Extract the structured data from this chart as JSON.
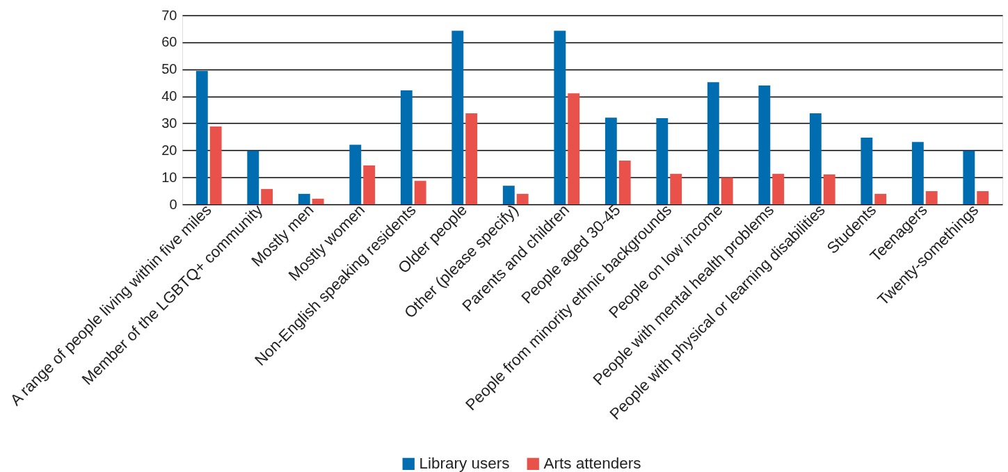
{
  "chart_data": {
    "type": "bar",
    "categories": [
      "A range of people living within five miles",
      "Member of the LGBTQ+ community",
      "Mostly men",
      "Mostly women",
      "Non-English speaking residents",
      "Older people",
      "Other (please specify)",
      "Parents and children",
      "People aged 30-45",
      "People from minority ethnic backgrounds",
      "People on low income",
      "People with mental health problems",
      "People with physical or learning disabilities",
      "Students",
      "Teenagers",
      "Twenty-somethings"
    ],
    "series": [
      {
        "name": "Library users",
        "color": "#006db0",
        "values": [
          49.4,
          19.9,
          3.9,
          22.1,
          42.2,
          64.3,
          6.9,
          64.3,
          32.1,
          31.9,
          45.2,
          44.0,
          33.7,
          24.7,
          23.1,
          19.9
        ]
      },
      {
        "name": "Arts attenders",
        "color": "#e9524a",
        "values": [
          28.8,
          5.7,
          2.1,
          14.4,
          8.7,
          33.7,
          3.9,
          41.1,
          16.2,
          11.3,
          9.9,
          11.3,
          11.1,
          3.9,
          4.9,
          4.9
        ]
      }
    ],
    "ylim": [
      0,
      70
    ],
    "yticks": [
      0,
      10,
      20,
      30,
      40,
      50,
      60,
      70
    ],
    "grid": "y",
    "legend": "bottom"
  }
}
